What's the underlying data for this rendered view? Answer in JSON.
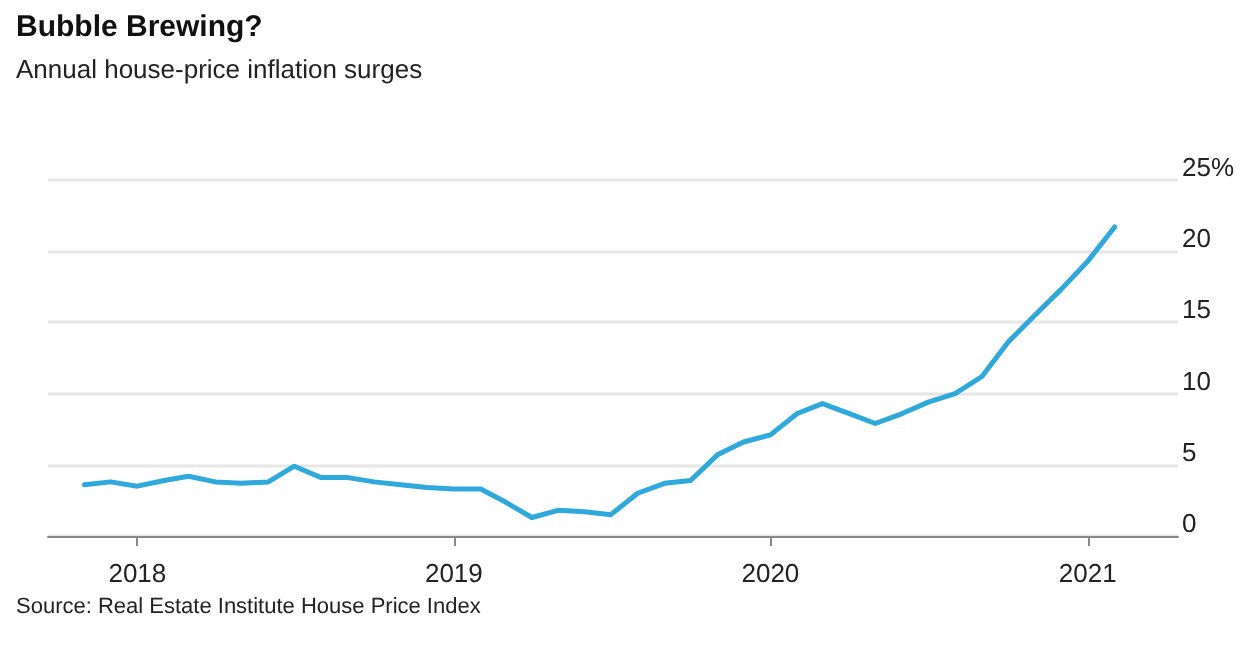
{
  "chart_data": {
    "type": "line",
    "title": "Bubble Brewing?",
    "subtitle": "Annual house-price inflation surges",
    "annotations": [
      "Source: Real Estate Institute House Price Index"
    ],
    "x": [
      "2017-11",
      "2017-12",
      "2018-01",
      "2018-02",
      "2018-03",
      "2018-04",
      "2018-05",
      "2018-06",
      "2018-07",
      "2018-08",
      "2018-09",
      "2018-10",
      "2018-11",
      "2018-12",
      "2019-01",
      "2019-02",
      "2019-03",
      "2019-04",
      "2019-05",
      "2019-06",
      "2019-07",
      "2019-08",
      "2019-09",
      "2019-10",
      "2019-11",
      "2019-12",
      "2020-01",
      "2020-02",
      "2020-03",
      "2020-04",
      "2020-05",
      "2020-06",
      "2020-07",
      "2020-08",
      "2020-09",
      "2020-10",
      "2020-11",
      "2020-12",
      "2021-01",
      "2021-02"
    ],
    "series": [
      {
        "color": "#2fa8dc",
        "values": [
          3.6,
          3.8,
          3.5,
          3.9,
          4.2,
          3.8,
          3.7,
          3.8,
          4.9,
          4.1,
          4.1,
          3.8,
          3.6,
          3.4,
          3.3,
          3.3,
          2.4,
          1.3,
          1.8,
          1.7,
          1.5,
          3.0,
          3.7,
          3.9,
          5.7,
          6.6,
          7.1,
          8.6,
          9.3,
          8.6,
          7.9,
          8.6,
          9.4,
          10.0,
          11.2,
          13.6,
          15.5,
          17.3,
          19.3,
          21.7
        ]
      }
    ],
    "xlim": [
      "2017-09-20",
      "2021-04-15"
    ],
    "xticks": [
      "2018",
      "2019",
      "2020",
      "2021"
    ],
    "ylim": [
      0,
      25
    ],
    "yticks": [
      0,
      5,
      10,
      15,
      20,
      {
        "value": 25,
        "label": "25%"
      }
    ],
    "grid": "y",
    "marker": "none",
    "line_style": "solid"
  }
}
